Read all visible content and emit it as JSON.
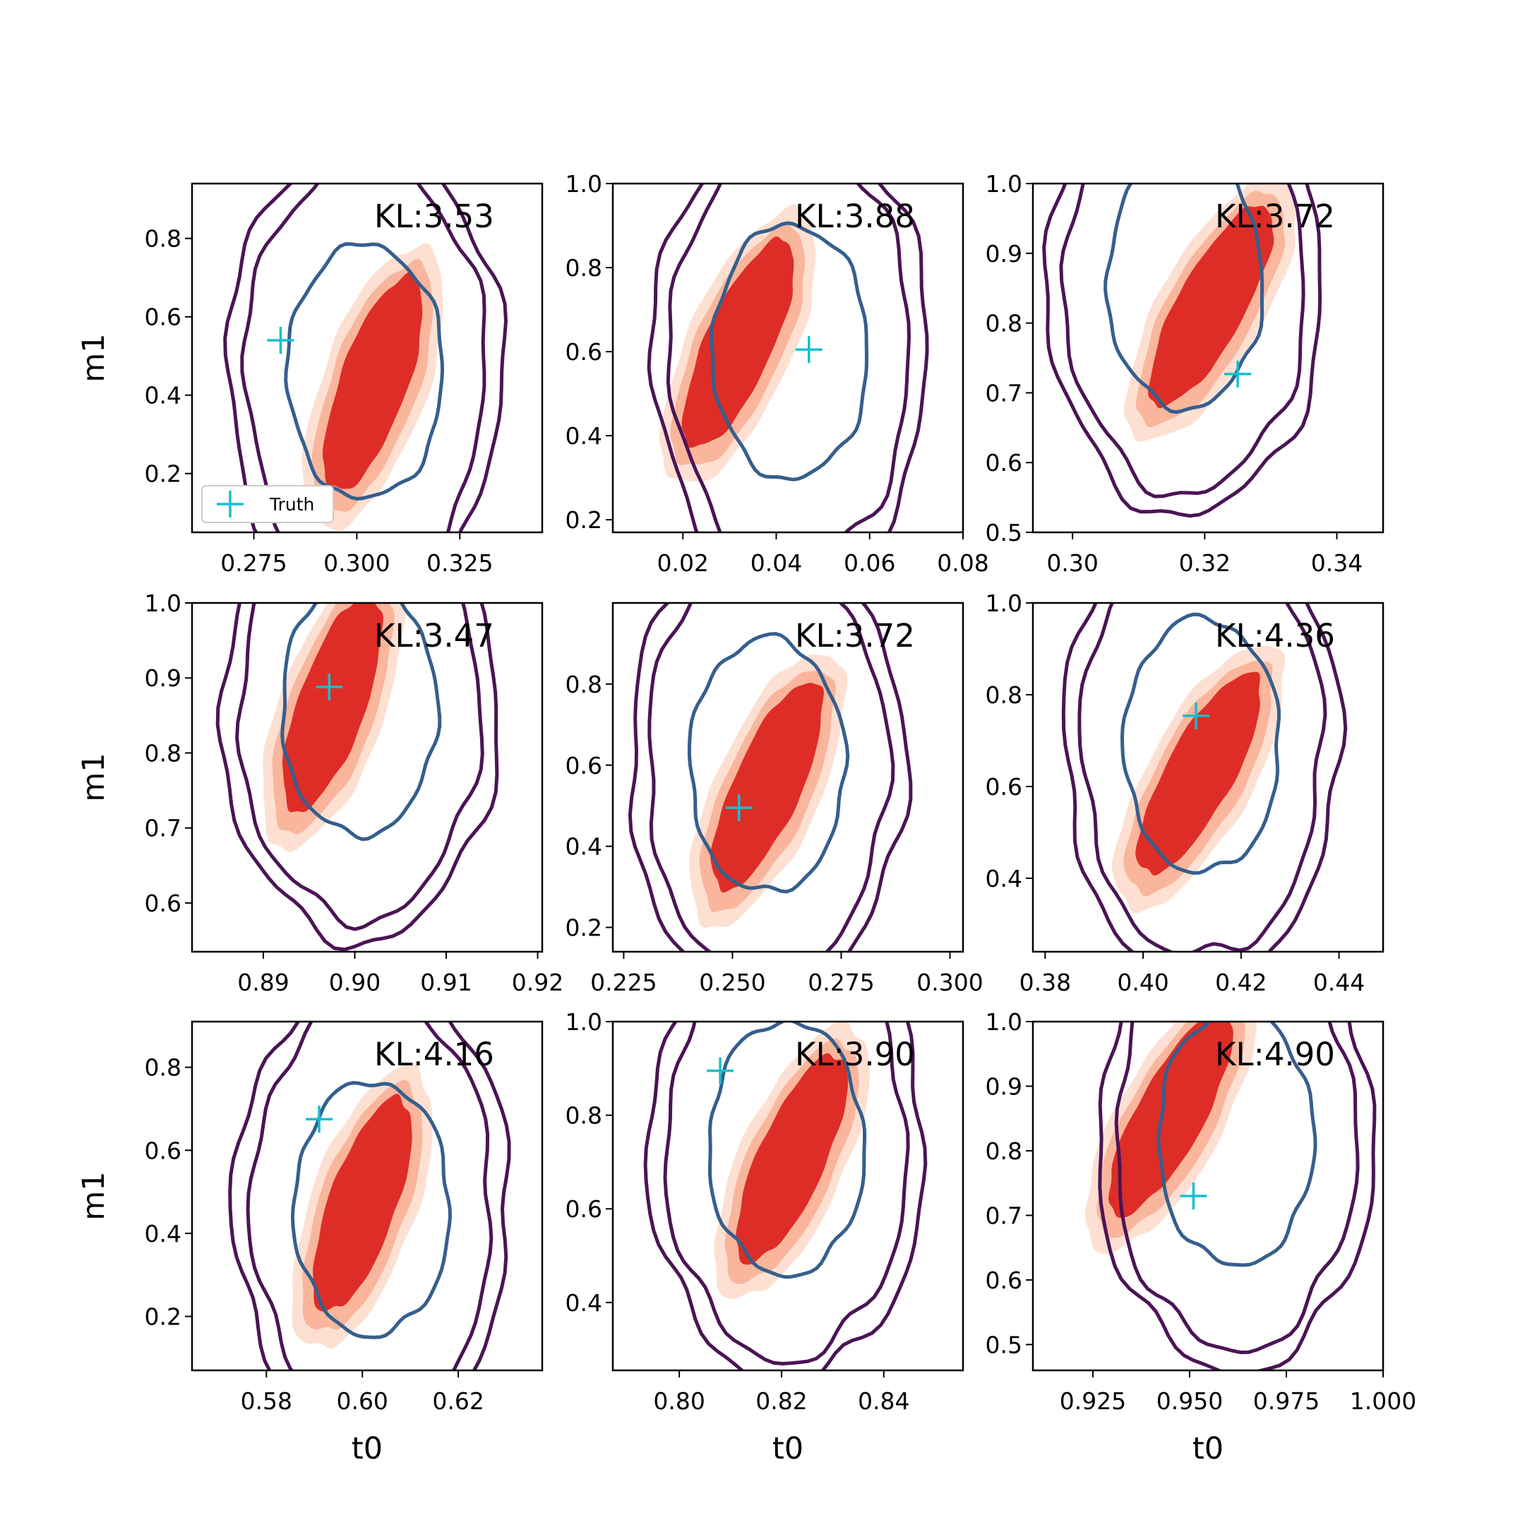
{
  "chart_data": [
    {
      "type": "scatter",
      "kl": "KL:3.53",
      "truth": [
        0.2815,
        0.54
      ],
      "post_center": [
        0.304,
        0.42
      ],
      "flow_center": [
        0.302,
        0.46
      ],
      "xlim": [
        0.26,
        0.345
      ],
      "ylim": [
        0.05,
        0.94
      ],
      "xticks": [
        {
          "v": 0.275,
          "label": "0.275"
        },
        {
          "v": 0.3,
          "label": "0.300"
        },
        {
          "v": 0.325,
          "label": "0.325"
        }
      ],
      "yticks": [
        {
          "v": 0.2,
          "label": "0.2"
        },
        {
          "v": 0.4,
          "label": "0.4"
        },
        {
          "v": 0.6,
          "label": "0.6"
        },
        {
          "v": 0.8,
          "label": "0.8"
        }
      ],
      "ylabel": "m1",
      "xlabel": "",
      "legend": true
    },
    {
      "type": "scatter",
      "kl": "KL:3.88",
      "truth": [
        0.047,
        0.605
      ],
      "post_center": [
        0.032,
        0.61
      ],
      "flow_center": [
        0.043,
        0.6
      ],
      "xlim": [
        0.005,
        0.08
      ],
      "ylim": [
        0.17,
        1.0
      ],
      "xticks": [
        {
          "v": 0.02,
          "label": "0.02"
        },
        {
          "v": 0.04,
          "label": "0.04"
        },
        {
          "v": 0.06,
          "label": "0.06"
        },
        {
          "v": 0.08,
          "label": "0.08"
        }
      ],
      "yticks": [
        {
          "v": 0.2,
          "label": "0.2"
        },
        {
          "v": 0.4,
          "label": "0.4"
        },
        {
          "v": 0.6,
          "label": "0.6"
        },
        {
          "v": 0.8,
          "label": "0.8"
        },
        {
          "v": 1.0,
          "label": "1.0"
        }
      ],
      "ylabel": "",
      "xlabel": "",
      "legend": false
    },
    {
      "type": "scatter",
      "kl": "KL:3.72",
      "truth": [
        0.325,
        0.727
      ],
      "post_center": [
        0.321,
        0.82
      ],
      "flow_center": [
        0.317,
        0.86
      ],
      "xlim": [
        0.294,
        0.347
      ],
      "ylim": [
        0.5,
        1.0
      ],
      "xticks": [
        {
          "v": 0.3,
          "label": "0.30"
        },
        {
          "v": 0.32,
          "label": "0.32"
        },
        {
          "v": 0.34,
          "label": "0.34"
        }
      ],
      "yticks": [
        {
          "v": 0.5,
          "label": "0.5"
        },
        {
          "v": 0.6,
          "label": "0.6"
        },
        {
          "v": 0.7,
          "label": "0.7"
        },
        {
          "v": 0.8,
          "label": "0.8"
        },
        {
          "v": 0.9,
          "label": "0.9"
        },
        {
          "v": 1.0,
          "label": "1.0"
        }
      ],
      "ylabel": "",
      "xlabel": "",
      "legend": false
    },
    {
      "type": "scatter",
      "kl": "KL:3.47",
      "truth": [
        0.8972,
        0.888
      ],
      "post_center": [
        0.8975,
        0.86
      ],
      "flow_center": [
        0.9005,
        0.86
      ],
      "xlim": [
        0.8822,
        0.9205
      ],
      "ylim": [
        0.535,
        1.0
      ],
      "xticks": [
        {
          "v": 0.89,
          "label": "0.89"
        },
        {
          "v": 0.9,
          "label": "0.90"
        },
        {
          "v": 0.91,
          "label": "0.91"
        },
        {
          "v": 0.92,
          "label": "0.92"
        }
      ],
      "yticks": [
        {
          "v": 0.6,
          "label": "0.6"
        },
        {
          "v": 0.7,
          "label": "0.7"
        },
        {
          "v": 0.8,
          "label": "0.8"
        },
        {
          "v": 0.9,
          "label": "0.9"
        },
        {
          "v": 1.0,
          "label": "1.0"
        }
      ],
      "ylabel": "m1",
      "xlabel": "",
      "legend": false
    },
    {
      "type": "scatter",
      "kl": "KL:3.72",
      "truth": [
        0.2515,
        0.495
      ],
      "post_center": [
        0.258,
        0.54
      ],
      "flow_center": [
        0.258,
        0.6
      ],
      "xlim": [
        0.2225,
        0.303
      ],
      "ylim": [
        0.14,
        1.0
      ],
      "xticks": [
        {
          "v": 0.225,
          "label": "0.225"
        },
        {
          "v": 0.25,
          "label": "0.250"
        },
        {
          "v": 0.275,
          "label": "0.275"
        },
        {
          "v": 0.3,
          "label": "0.300"
        }
      ],
      "yticks": [
        {
          "v": 0.2,
          "label": "0.2"
        },
        {
          "v": 0.4,
          "label": "0.4"
        },
        {
          "v": 0.6,
          "label": "0.6"
        },
        {
          "v": 0.8,
          "label": "0.8"
        }
      ],
      "ylabel": "",
      "xlabel": "",
      "legend": false
    },
    {
      "type": "scatter",
      "kl": "KL:4.36",
      "truth": [
        0.4108,
        0.754
      ],
      "post_center": [
        0.4115,
        0.62
      ],
      "flow_center": [
        0.412,
        0.69
      ],
      "xlim": [
        0.3775,
        0.449
      ],
      "ylim": [
        0.24,
        1.0
      ],
      "xticks": [
        {
          "v": 0.38,
          "label": "0.38"
        },
        {
          "v": 0.4,
          "label": "0.40"
        },
        {
          "v": 0.42,
          "label": "0.42"
        },
        {
          "v": 0.44,
          "label": "0.44"
        }
      ],
      "yticks": [
        {
          "v": 0.4,
          "label": "0.4"
        },
        {
          "v": 0.6,
          "label": "0.6"
        },
        {
          "v": 0.8,
          "label": "0.8"
        },
        {
          "v": 1.0,
          "label": "1.0"
        }
      ],
      "ylabel": "",
      "xlabel": "",
      "legend": false
    },
    {
      "type": "scatter",
      "kl": "KL:4.16",
      "truth": [
        0.591,
        0.675
      ],
      "post_center": [
        0.6,
        0.46
      ],
      "flow_center": [
        0.602,
        0.46
      ],
      "xlim": [
        0.5645,
        0.6375
      ],
      "ylim": [
        0.07,
        0.91
      ],
      "xticks": [
        {
          "v": 0.58,
          "label": "0.58"
        },
        {
          "v": 0.6,
          "label": "0.60"
        },
        {
          "v": 0.62,
          "label": "0.62"
        }
      ],
      "yticks": [
        {
          "v": 0.2,
          "label": "0.2"
        },
        {
          "v": 0.4,
          "label": "0.4"
        },
        {
          "v": 0.6,
          "label": "0.6"
        },
        {
          "v": 0.8,
          "label": "0.8"
        }
      ],
      "ylabel": "m1",
      "xlabel": "t0",
      "legend": false
    },
    {
      "type": "scatter",
      "kl": "KL:3.90",
      "truth": [
        0.808,
        0.895
      ],
      "post_center": [
        0.822,
        0.7
      ],
      "flow_center": [
        0.821,
        0.73
      ],
      "xlim": [
        0.787,
        0.8555
      ],
      "ylim": [
        0.255,
        1.0
      ],
      "xticks": [
        {
          "v": 0.8,
          "label": "0.80"
        },
        {
          "v": 0.82,
          "label": "0.82"
        },
        {
          "v": 0.84,
          "label": "0.84"
        }
      ],
      "yticks": [
        {
          "v": 0.4,
          "label": "0.4"
        },
        {
          "v": 0.6,
          "label": "0.6"
        },
        {
          "v": 0.8,
          "label": "0.8"
        },
        {
          "v": 1.0,
          "label": "1.0"
        }
      ],
      "ylabel": "",
      "xlabel": "t0",
      "legend": false
    },
    {
      "type": "scatter",
      "kl": "KL:4.90",
      "truth": [
        0.951,
        0.73
      ],
      "post_center": [
        0.945,
        0.85
      ],
      "flow_center": [
        0.962,
        0.82
      ],
      "xlim": [
        0.9095,
        1.0
      ],
      "ylim": [
        0.46,
        1.0
      ],
      "xticks": [
        {
          "v": 0.925,
          "label": "0.925"
        },
        {
          "v": 0.95,
          "label": "0.950"
        },
        {
          "v": 0.975,
          "label": "0.975"
        },
        {
          "v": 1.0,
          "label": "1.000"
        }
      ],
      "yticks": [
        {
          "v": 0.5,
          "label": "0.5"
        },
        {
          "v": 0.6,
          "label": "0.6"
        },
        {
          "v": 0.7,
          "label": "0.7"
        },
        {
          "v": 0.8,
          "label": "0.8"
        },
        {
          "v": 0.9,
          "label": "0.9"
        },
        {
          "v": 1.0,
          "label": "1.0"
        }
      ],
      "ylabel": "",
      "xlabel": "t0",
      "legend": false
    }
  ],
  "legend": {
    "label": "Truth"
  },
  "colors": {
    "truth": "#17becf",
    "posterior_light": "#fde0d2",
    "posterior_mid": "#f9b69c",
    "posterior_dark": "#de2d26",
    "contour_outer": "#4b1456",
    "contour_inner": "#355f8d"
  }
}
